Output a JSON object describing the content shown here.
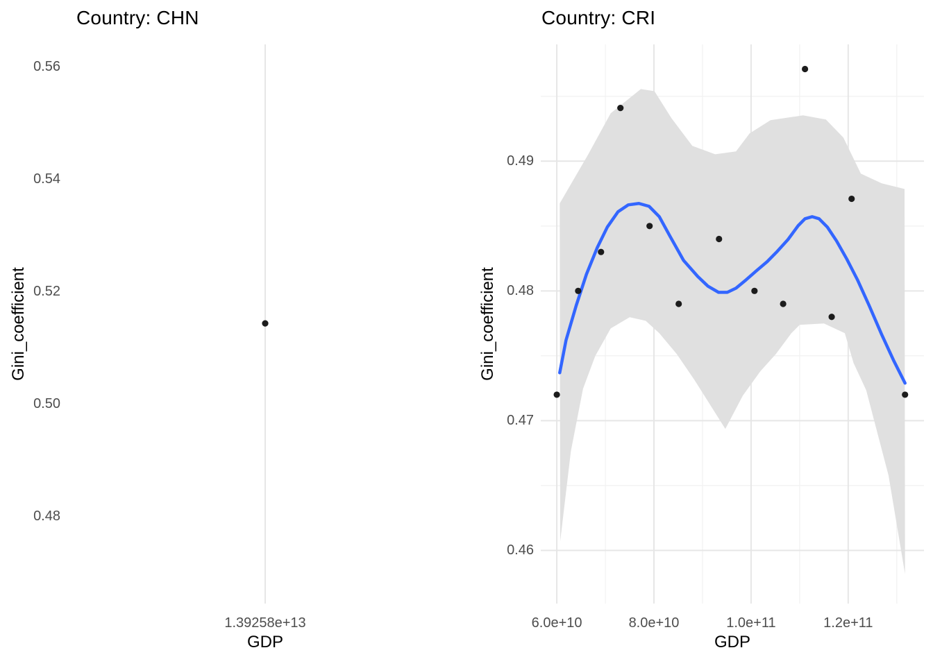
{
  "figure": {
    "background": "#ffffff",
    "description": "Two ggplot-style scatter plots of Gini coefficient vs GDP, faceted by country"
  },
  "chart_data": [
    {
      "type": "scatter",
      "title": "Country: CHN",
      "xlabel": "GDP",
      "ylabel": "Gini_coefficient",
      "xlim": [
        13925300000000,
        13926300000000
      ],
      "ylim": [
        0.46444,
        0.56395
      ],
      "x_ticks": [
        {
          "value": 13925800000000,
          "label": "1.39258e+13"
        }
      ],
      "y_ticks": [
        {
          "value": 0.56,
          "label": "0.56"
        },
        {
          "value": 0.54,
          "label": "0.54"
        },
        {
          "value": 0.52,
          "label": "0.52"
        },
        {
          "value": 0.5,
          "label": "0.50"
        },
        {
          "value": 0.48,
          "label": "0.48"
        }
      ],
      "x_minor": [],
      "y_minor": [],
      "grid_x": true,
      "grid_y": false,
      "points": [
        [
          13925800000000,
          0.5143
        ]
      ],
      "smooth_line": [],
      "ribbon": null,
      "colors": {
        "point": "#1c1c1c",
        "grid_major": "#e6e6e6",
        "grid_minor": "#f2f2f2"
      }
    },
    {
      "type": "scatter+smooth",
      "title": "Country: CRI",
      "xlabel": "GDP",
      "ylabel": "Gini_coefficient",
      "xlim": [
        56700000000,
        135600000000
      ],
      "ylim": [
        0.4559,
        0.499
      ],
      "x_ticks": [
        {
          "value": 60000000000,
          "label": "6.0e+10"
        },
        {
          "value": 80000000000,
          "label": "8.0e+10"
        },
        {
          "value": 100000000000,
          "label": "1.0e+11"
        },
        {
          "value": 120000000000,
          "label": "1.2e+11"
        }
      ],
      "y_ticks": [
        {
          "value": 0.49,
          "label": "0.49"
        },
        {
          "value": 0.48,
          "label": "0.48"
        },
        {
          "value": 0.47,
          "label": "0.47"
        },
        {
          "value": 0.46,
          "label": "0.46"
        }
      ],
      "x_minor": [
        70000000000,
        90000000000,
        110000000000,
        130000000000
      ],
      "y_minor": [
        0.495,
        0.485,
        0.475,
        0.465
      ],
      "grid_x": true,
      "grid_y": true,
      "points": [
        [
          60000000000,
          0.472
        ],
        [
          64400000000,
          0.48
        ],
        [
          69100000000,
          0.483
        ],
        [
          73100000000,
          0.4941
        ],
        [
          79100000000,
          0.485
        ],
        [
          85100000000,
          0.479
        ],
        [
          93400000000,
          0.484
        ],
        [
          100700000000,
          0.48
        ],
        [
          106600000000,
          0.479
        ],
        [
          111100000000,
          0.4971
        ],
        [
          116600000000,
          0.478
        ],
        [
          120700000000,
          0.4871
        ],
        [
          131700000000,
          0.472
        ]
      ],
      "smooth_line": [
        [
          60600000000,
          0.47369
        ],
        [
          61900000000,
          0.4762
        ],
        [
          64000000000,
          0.47888
        ],
        [
          66100000000,
          0.48128
        ],
        [
          68300000000,
          0.48331
        ],
        [
          70400000000,
          0.48492
        ],
        [
          72600000000,
          0.4861
        ],
        [
          74700000000,
          0.48663
        ],
        [
          76900000000,
          0.48674
        ],
        [
          79000000000,
          0.48652
        ],
        [
          81100000000,
          0.48572
        ],
        [
          83300000000,
          0.48422
        ],
        [
          86100000000,
          0.48235
        ],
        [
          89000000000,
          0.48112
        ],
        [
          91100000000,
          0.48037
        ],
        [
          93300000000,
          0.47989
        ],
        [
          95100000000,
          0.47989
        ],
        [
          96900000000,
          0.48021
        ],
        [
          99000000000,
          0.48086
        ],
        [
          101100000000,
          0.48155
        ],
        [
          103300000000,
          0.48225
        ],
        [
          105400000000,
          0.48305
        ],
        [
          107600000000,
          0.48396
        ],
        [
          109700000000,
          0.48503
        ],
        [
          111100000000,
          0.48556
        ],
        [
          112600000000,
          0.48572
        ],
        [
          114000000000,
          0.48556
        ],
        [
          115700000000,
          0.48492
        ],
        [
          117600000000,
          0.48385
        ],
        [
          119700000000,
          0.48246
        ],
        [
          121900000000,
          0.48086
        ],
        [
          124300000000,
          0.47888
        ],
        [
          126900000000,
          0.47663
        ],
        [
          129400000000,
          0.4746
        ],
        [
          131700000000,
          0.47289
        ]
      ],
      "ribbon": {
        "upper": [
          [
            60600000000,
            0.48674
          ],
          [
            66400000000,
            0.49048
          ],
          [
            71100000000,
            0.49369
          ],
          [
            77300000000,
            0.49556
          ],
          [
            80100000000,
            0.4954
          ],
          [
            83600000000,
            0.49332
          ],
          [
            87900000000,
            0.49118
          ],
          [
            92600000000,
            0.49053
          ],
          [
            96900000000,
            0.49075
          ],
          [
            99700000000,
            0.49214
          ],
          [
            104000000000,
            0.49316
          ],
          [
            110700000000,
            0.49353
          ],
          [
            115400000000,
            0.49321
          ],
          [
            119000000000,
            0.49182
          ],
          [
            122600000000,
            0.48904
          ],
          [
            126900000000,
            0.48829
          ],
          [
            131600000000,
            0.48786
          ]
        ],
        "lower": [
          [
            60700000000,
            0.4607
          ],
          [
            62900000000,
            0.46765
          ],
          [
            65400000000,
            0.47246
          ],
          [
            67900000000,
            0.47497
          ],
          [
            71100000000,
            0.47711
          ],
          [
            75000000000,
            0.47797
          ],
          [
            78300000000,
            0.4777
          ],
          [
            81100000000,
            0.47674
          ],
          [
            84700000000,
            0.47513
          ],
          [
            88300000000,
            0.47316
          ],
          [
            91100000000,
            0.4715
          ],
          [
            94700000000,
            0.46936
          ],
          [
            98300000000,
            0.47193
          ],
          [
            101900000000,
            0.4738
          ],
          [
            105100000000,
            0.47513
          ],
          [
            108300000000,
            0.47674
          ],
          [
            110000000000,
            0.47738
          ],
          [
            115000000000,
            0.47749
          ],
          [
            119300000000,
            0.47674
          ],
          [
            121100000000,
            0.47444
          ],
          [
            123700000000,
            0.47235
          ],
          [
            128300000000,
            0.46578
          ],
          [
            131700000000,
            0.45818
          ]
        ]
      },
      "colors": {
        "point": "#1c1c1c",
        "line": "#3366ff",
        "ribbon": "#e0e0e0",
        "grid_major": "#e6e6e6",
        "grid_minor": "#f2f2f2"
      }
    }
  ]
}
